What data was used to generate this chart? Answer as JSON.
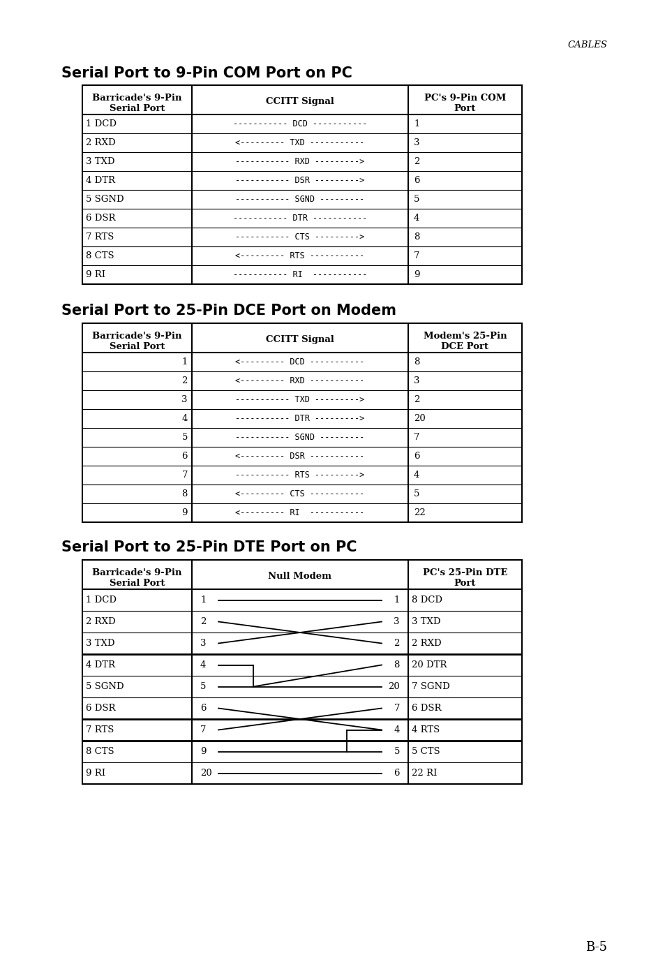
{
  "bg_color": "#ffffff",
  "header_watermark": "CABLES",
  "page_num": "B-5",
  "table1_title": "Serial Port to 9-Pin COM Port on PC",
  "table1_headers": [
    "Barricade's 9-Pin\nSerial Port",
    "CCITT Signal",
    "PC's 9-Pin COM\nPort"
  ],
  "table1_rows": [
    [
      "1 DCD",
      "----------- DCD -----------",
      "1"
    ],
    [
      "2 RXD",
      "<--------- TXD -----------",
      "3"
    ],
    [
      "3 TXD",
      "----------- RXD --------->",
      "2"
    ],
    [
      "4 DTR",
      "----------- DSR --------->",
      "6"
    ],
    [
      "5 SGND",
      "----------- SGND ---------",
      "5"
    ],
    [
      "6 DSR",
      "----------- DTR -----------",
      "4"
    ],
    [
      "7 RTS",
      "----------- CTS --------->",
      "8"
    ],
    [
      "8 CTS",
      "<--------- RTS -----------",
      "7"
    ],
    [
      "9 RI",
      "----------- RI  -----------",
      "9"
    ]
  ],
  "table2_title": "Serial Port to 25-Pin DCE Port on Modem",
  "table2_headers": [
    "Barricade's 9-Pin\nSerial Port",
    "CCITT Signal",
    "Modem's 25-Pin\nDCE Port"
  ],
  "table2_rows": [
    [
      "1",
      "<--------- DCD -----------",
      "8"
    ],
    [
      "2",
      "<--------- RXD -----------",
      "3"
    ],
    [
      "3",
      "----------- TXD --------->",
      "2"
    ],
    [
      "4",
      "----------- DTR --------->",
      "20"
    ],
    [
      "5",
      "----------- SGND ---------",
      "7"
    ],
    [
      "6",
      "<--------- DSR -----------",
      "6"
    ],
    [
      "7",
      "----------- RTS --------->",
      "4"
    ],
    [
      "8",
      "<--------- CTS -----------",
      "5"
    ],
    [
      "9",
      "<--------- RI  -----------",
      "22"
    ]
  ],
  "table3_title": "Serial Port to 25-Pin DTE Port on PC",
  "table3_headers": [
    "Barricade's 9-Pin\nSerial Port",
    "Null Modem",
    "PC's 25-Pin DTE\nPort"
  ],
  "table3_rows": [
    [
      "1 DCD",
      "1",
      "1",
      "8 DCD"
    ],
    [
      "2 RXD",
      "2",
      "3",
      "3 TXD"
    ],
    [
      "3 TXD",
      "3",
      "2",
      "2 RXD"
    ],
    [
      "4 DTR",
      "4",
      "8",
      "20 DTR"
    ],
    [
      "5 SGND",
      "5",
      "20",
      "7 SGND"
    ],
    [
      "6 DSR",
      "6",
      "7",
      "6 DSR"
    ],
    [
      "7 RTS",
      "7",
      "4",
      "4 RTS"
    ],
    [
      "8 CTS",
      "9",
      "5",
      "5 CTS"
    ],
    [
      "9 RI",
      "20",
      "6",
      "22 RI"
    ]
  ]
}
